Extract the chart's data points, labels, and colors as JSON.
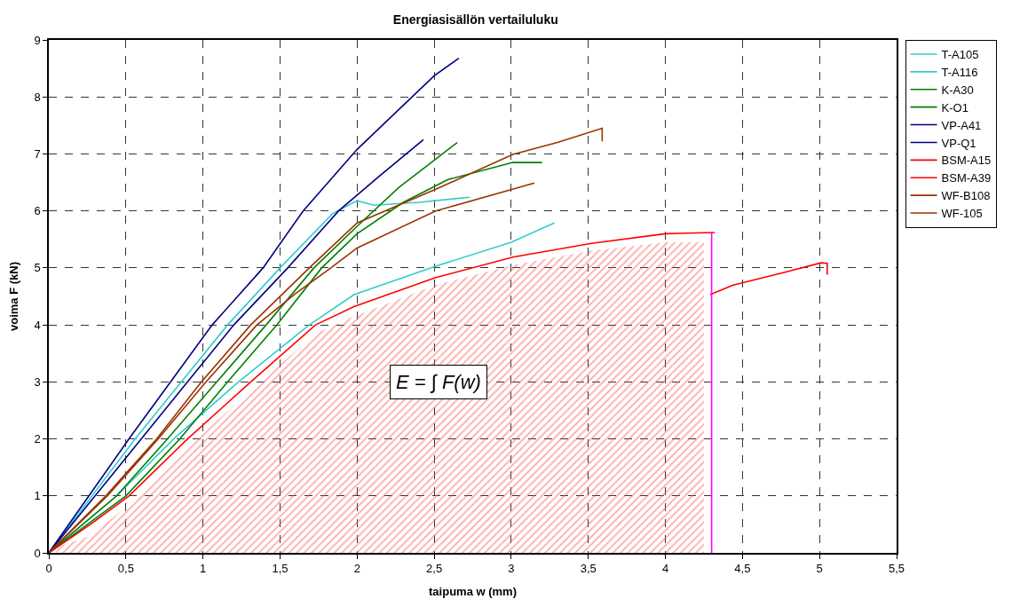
{
  "chart_data": {
    "type": "line",
    "title": "Energiasisällön vertailuluku",
    "xlabel": "taipuma w (mm)",
    "ylabel": "voima F (kN)",
    "xlim": [
      0,
      5.5
    ],
    "ylim": [
      0,
      9
    ],
    "xticks": [
      0,
      {
        "value": 0.5,
        "label": "0,5"
      },
      1,
      {
        "value": 1.5,
        "label": "1,5"
      },
      2,
      {
        "value": 2.5,
        "label": "2,5"
      },
      3,
      {
        "value": 3.5,
        "label": "3,5"
      },
      4,
      {
        "value": 4.5,
        "label": "4,5"
      },
      5,
      {
        "value": 5.5,
        "label": "5,5"
      }
    ],
    "yticks": [
      0,
      1,
      2,
      3,
      4,
      5,
      6,
      7,
      8,
      9
    ],
    "grid": true,
    "line_style": "solid",
    "marker": "none",
    "legend": "top right",
    "series": [
      {
        "type": "area",
        "color": "#ff5050",
        "x": [
          0.05,
          0.27,
          0.52,
          0.9,
          1.31,
          1.73,
          1.98,
          2.51,
          3.01,
          3.52,
          4.0,
          4.25,
          4.25
        ],
        "values": [
          0.1,
          0.3,
          0.85,
          1.85,
          2.85,
          3.85,
          4.15,
          4.7,
          5.05,
          5.3,
          5.45,
          5.45,
          0.1
        ]
      },
      {
        "name": "T-A105",
        "color": "#33cccc",
        "x": [
          0,
          0.44,
          0.81,
          1.23,
          1.69,
          1.98,
          2.51,
          3.0,
          3.28
        ],
        "values": [
          0,
          1,
          2,
          3,
          4,
          4.53,
          5.03,
          5.45,
          5.79
        ]
      },
      {
        "name": "T-A116",
        "color": "#33cccc",
        "x": [
          0,
          0.56,
          0.86,
          1.16,
          1.5,
          1.84,
          2.0,
          2.11,
          2.4,
          2.73
        ],
        "values": [
          0,
          2,
          3,
          4,
          5,
          5.95,
          6.18,
          6.1,
          6.15,
          6.24
        ]
      },
      {
        "name": "K-A30",
        "color": "#008000",
        "x": [
          0,
          0.5,
          0.85,
          1.16,
          1.48,
          1.77,
          2.0,
          2.3,
          2.59,
          3.01,
          3.2
        ],
        "values": [
          0,
          1,
          2,
          3,
          4,
          5,
          5.6,
          6.15,
          6.55,
          6.85,
          6.85
        ]
      },
      {
        "name": "K-O1",
        "color": "#008000",
        "x": [
          0,
          0.44,
          0.77,
          1.09,
          1.41,
          1.72,
          2.0,
          2.27,
          2.65
        ],
        "values": [
          0,
          1,
          2,
          3,
          4,
          5,
          5.73,
          6.41,
          7.2
        ]
      },
      {
        "name": "VP-A41",
        "color": "#000080",
        "x": [
          0,
          0.6,
          0.9,
          1.2,
          1.55,
          1.88,
          2.14,
          2.43
        ],
        "values": [
          0,
          2,
          3,
          4,
          5,
          6,
          6.6,
          7.25
        ]
      },
      {
        "name": "VP-Q1",
        "color": "#000080",
        "x": [
          0,
          0.52,
          0.79,
          1.06,
          1.39,
          1.65,
          2.0,
          2.5,
          2.66
        ],
        "values": [
          0,
          2,
          3,
          4,
          5,
          6,
          7.08,
          8.37,
          8.68
        ]
      },
      {
        "name": "BSM-A15",
        "color": "#ff0000",
        "x": [
          0,
          0.27,
          0.52,
          0.9,
          1.31,
          1.73,
          1.98,
          2.51,
          3.01,
          3.52,
          4.0,
          4.32
        ],
        "values": [
          0,
          0.5,
          1,
          2,
          3,
          4,
          4.32,
          4.83,
          5.19,
          5.43,
          5.6,
          5.62
        ]
      },
      {
        "name": "BSM-A39",
        "color": "#ff0000",
        "x": [
          4.29,
          4.44,
          4.77,
          5.01,
          5.05,
          5.05
        ],
        "values": [
          4.53,
          4.7,
          4.92,
          5.09,
          5.08,
          4.88
        ]
      },
      {
        "name": "WF-B108",
        "color": "#993300",
        "x": [
          0,
          0.37,
          0.7,
          0.99,
          1.31,
          1.69,
          2.0,
          2.51,
          3.01,
          3.3,
          3.59,
          3.59
        ],
        "values": [
          0,
          1,
          2,
          3,
          4,
          5,
          5.79,
          6.38,
          6.99,
          7.2,
          7.45,
          7.22
        ]
      },
      {
        "name": "WF-105",
        "color": "#993300",
        "x": [
          0,
          0.38,
          0.71,
          1.02,
          1.35,
          1.6,
          1.83,
          2.0,
          2.51,
          3.15
        ],
        "values": [
          0,
          1,
          2,
          3,
          4,
          4.55,
          5,
          5.35,
          6.0,
          6.49
        ]
      },
      {
        "color": "#ff00ff",
        "x": [
          4.3,
          4.3
        ],
        "values": [
          0,
          5.62
        ]
      }
    ],
    "annotations": [
      "E = ∫ F(w)"
    ]
  }
}
